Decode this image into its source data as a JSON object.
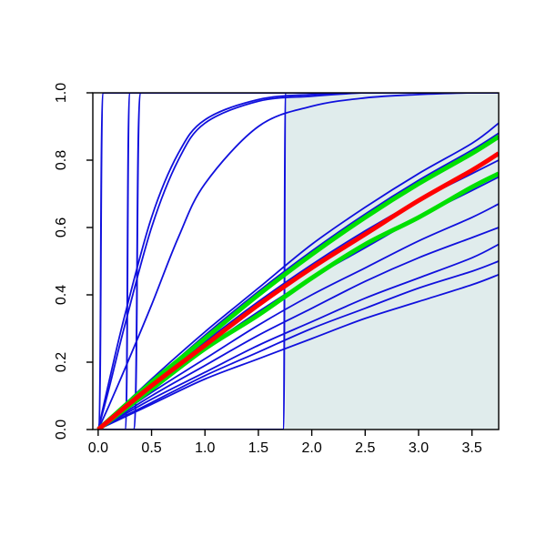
{
  "chart_data": {
    "type": "line",
    "title": "",
    "xlabel": "",
    "ylabel": "",
    "xlim": [
      -0.05,
      3.75
    ],
    "ylim": [
      0.0,
      1.0
    ],
    "x_ticks": [
      "0.0",
      "0.5",
      "1.0",
      "1.5",
      "2.0",
      "2.5",
      "3.0",
      "3.5"
    ],
    "y_ticks": [
      "0.0",
      "0.2",
      "0.4",
      "0.6",
      "0.8",
      "1.0"
    ],
    "grid": false,
    "legend": "none",
    "shaded_region": {
      "x_from": 1.75,
      "x_to": 3.75,
      "y_from": 0.0,
      "y_to": 1.0,
      "color": "#e0ecec"
    },
    "step_curves": [
      {
        "x_start": 0.0,
        "x_end": 0.05,
        "color": "#1010dd"
      },
      {
        "x_start": 0.25,
        "x_end": 0.3,
        "color": "#1010dd"
      },
      {
        "x_start": 0.33,
        "x_end": 0.4,
        "color": "#1010dd"
      },
      {
        "x_start": 1.73,
        "x_end": 1.76,
        "color": "#1010dd"
      }
    ],
    "series": [
      {
        "values_at_x": [
          0.0,
          0.1,
          0.25,
          0.5,
          0.75,
          1.0,
          1.5,
          2.0,
          2.5,
          3.0,
          3.5,
          3.75
        ],
        "values": [
          0.0,
          0.14,
          0.34,
          0.63,
          0.82,
          0.92,
          0.98,
          0.995,
          1.0,
          1.0,
          1.0,
          1.0
        ],
        "color": "#1010dd"
      },
      {
        "values_at_x": [
          0.0,
          0.1,
          0.25,
          0.5,
          0.75,
          1.0,
          1.5,
          2.0,
          2.5,
          3.0,
          3.5,
          3.75
        ],
        "values": [
          0.0,
          0.12,
          0.31,
          0.6,
          0.8,
          0.91,
          0.975,
          0.99,
          1.0,
          1.0,
          1.0,
          1.0
        ],
        "color": "#1010dd"
      },
      {
        "values_at_x": [
          0.0,
          0.1,
          0.25,
          0.5,
          0.75,
          1.0,
          1.5,
          2.0,
          2.5,
          3.0,
          3.5,
          3.75
        ],
        "values": [
          0.0,
          0.07,
          0.18,
          0.37,
          0.57,
          0.73,
          0.9,
          0.96,
          0.985,
          0.995,
          1.0,
          1.0
        ],
        "color": "#1010dd"
      },
      {
        "values_at_x": [
          0.0,
          0.5,
          1.0,
          1.5,
          2.0,
          2.5,
          3.0,
          3.5,
          3.75
        ],
        "values": [
          0.0,
          0.15,
          0.29,
          0.42,
          0.55,
          0.66,
          0.76,
          0.85,
          0.91
        ],
        "color": "#1010dd"
      },
      {
        "values_at_x": [
          0.0,
          0.5,
          1.0,
          1.5,
          2.0,
          2.5,
          3.0,
          3.5,
          3.75
        ],
        "values": [
          0.0,
          0.14,
          0.28,
          0.41,
          0.53,
          0.64,
          0.74,
          0.83,
          0.88
        ],
        "color": "#1010dd"
      },
      {
        "values_at_x": [
          0.0,
          0.5,
          1.0,
          1.5,
          2.0,
          2.5,
          3.0,
          3.5,
          3.75
        ],
        "values": [
          0.0,
          0.13,
          0.26,
          0.38,
          0.49,
          0.59,
          0.68,
          0.76,
          0.8
        ],
        "color": "#1010dd"
      },
      {
        "values_at_x": [
          0.0,
          0.5,
          1.0,
          1.5,
          2.0,
          2.5,
          3.0,
          3.5,
          3.75
        ],
        "values": [
          0.0,
          0.12,
          0.24,
          0.35,
          0.45,
          0.54,
          0.63,
          0.71,
          0.75
        ],
        "color": "#1010dd"
      },
      {
        "values_at_x": [
          0.0,
          0.5,
          1.0,
          1.5,
          2.0,
          2.5,
          3.0,
          3.5,
          3.75
        ],
        "values": [
          0.0,
          0.11,
          0.21,
          0.31,
          0.4,
          0.48,
          0.56,
          0.63,
          0.67
        ],
        "color": "#1010dd"
      },
      {
        "values_at_x": [
          0.0,
          0.5,
          1.0,
          1.5,
          2.0,
          2.5,
          3.0,
          3.5,
          3.75
        ],
        "values": [
          0.0,
          0.1,
          0.19,
          0.28,
          0.36,
          0.44,
          0.51,
          0.57,
          0.6
        ],
        "color": "#1010dd"
      },
      {
        "values_at_x": [
          0.0,
          0.5,
          1.0,
          1.5,
          2.0,
          2.5,
          3.0,
          3.5,
          3.75
        ],
        "values": [
          0.0,
          0.09,
          0.17,
          0.25,
          0.32,
          0.39,
          0.45,
          0.51,
          0.55
        ],
        "color": "#1010dd"
      },
      {
        "values_at_x": [
          0.0,
          0.5,
          1.0,
          1.5,
          2.0,
          2.5,
          3.0,
          3.5,
          3.75
        ],
        "values": [
          0.0,
          0.08,
          0.16,
          0.23,
          0.3,
          0.36,
          0.42,
          0.47,
          0.5
        ],
        "color": "#1010dd"
      },
      {
        "values_at_x": [
          0.0,
          0.5,
          1.0,
          1.5,
          2.0,
          2.5,
          3.0,
          3.5,
          3.75
        ],
        "values": [
          0.0,
          0.075,
          0.15,
          0.21,
          0.27,
          0.33,
          0.38,
          0.43,
          0.46
        ],
        "color": "#1010dd"
      },
      {
        "values_at_x": [
          0.0,
          0.5,
          1.0,
          1.5,
          2.0,
          2.5,
          3.0,
          3.5,
          3.75
        ],
        "values": [
          0.0,
          0.14,
          0.27,
          0.4,
          0.52,
          0.63,
          0.73,
          0.82,
          0.87
        ],
        "color": "#00e000"
      },
      {
        "values_at_x": [
          0.0,
          0.5,
          1.0,
          1.5,
          2.0,
          2.5,
          3.0,
          3.5,
          3.75
        ],
        "values": [
          0.0,
          0.12,
          0.24,
          0.34,
          0.45,
          0.55,
          0.63,
          0.72,
          0.76
        ],
        "color": "#00e000"
      },
      {
        "values_at_x": [
          0.0,
          0.5,
          1.0,
          1.5,
          2.0,
          2.5,
          3.0,
          3.5,
          3.75
        ],
        "values": [
          0.0,
          0.13,
          0.25,
          0.37,
          0.48,
          0.58,
          0.68,
          0.77,
          0.82
        ],
        "color": "#ff0000"
      }
    ]
  }
}
